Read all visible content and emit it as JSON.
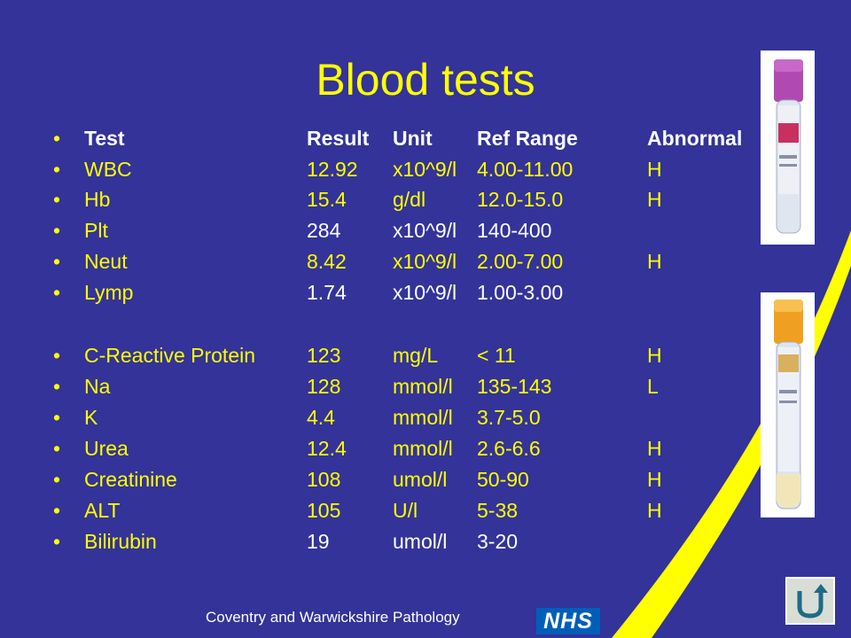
{
  "slide": {
    "title": "Blood tests",
    "footer": "Coventry and Warwickshire Pathology",
    "nhs_logo_text": "NHS",
    "bullet_char": "•"
  },
  "table": {
    "header": {
      "test": "Test",
      "result": "Result",
      "unit": "Unit",
      "ref": "Ref Range",
      "abnormal": "Abnormal"
    },
    "rows": [
      {
        "test": "WBC",
        "result": "12.92",
        "unit": "x10^9/l",
        "ref": "4.00-11.00",
        "abnormal": "H"
      },
      {
        "test": "Hb",
        "result": "15.4",
        "unit": "g/dl",
        "ref": "12.0-15.0",
        "abnormal": "H"
      },
      {
        "test": "Plt",
        "result": "284",
        "unit": "x10^9/l",
        "ref": "140-400",
        "abnormal": ""
      },
      {
        "test": "Neut",
        "result": "8.42",
        "unit": "x10^9/l",
        "ref": "2.00-7.00",
        "abnormal": "H"
      },
      {
        "test": "Lymp",
        "result": "1.74",
        "unit": "x10^9/l",
        "ref": "1.00-3.00",
        "abnormal": ""
      },
      {
        "test": "C-Reactive Protein",
        "result": "123",
        "unit": "mg/L",
        "ref": "< 11",
        "abnormal": "H"
      },
      {
        "test": "Na",
        "result": "128",
        "unit": "mmol/l",
        "ref": "135-143",
        "abnormal": "L"
      },
      {
        "test": "K",
        "result": "4.4",
        "unit": "mmol/l",
        "ref": "3.7-5.0",
        "abnormal": ""
      },
      {
        "test": "Urea",
        "result": "12.4",
        "unit": "mmol/l",
        "ref": "2.6-6.6",
        "abnormal": "H"
      },
      {
        "test": "Creatinine",
        "result": "108",
        "unit": "umol/l",
        "ref": "50-90",
        "abnormal": "H"
      },
      {
        "test": "ALT",
        "result": "105",
        "unit": "U/l",
        "ref": "5-38",
        "abnormal": "H"
      },
      {
        "test": "Bilirubin",
        "result": "19",
        "unit": "umol/l",
        "ref": "3-20",
        "abnormal": ""
      }
    ]
  },
  "colors": {
    "background": "#333399",
    "accent_yellow": "#ffff00",
    "nhs_blue": "#005eb8",
    "tube1_cap": "#b04ab0",
    "tube2_cap": "#f0a020"
  },
  "icons": {
    "tube1": "lavender-top-blood-tube",
    "tube2": "gold-top-blood-tube",
    "back": "u-turn-back-arrow-icon"
  }
}
